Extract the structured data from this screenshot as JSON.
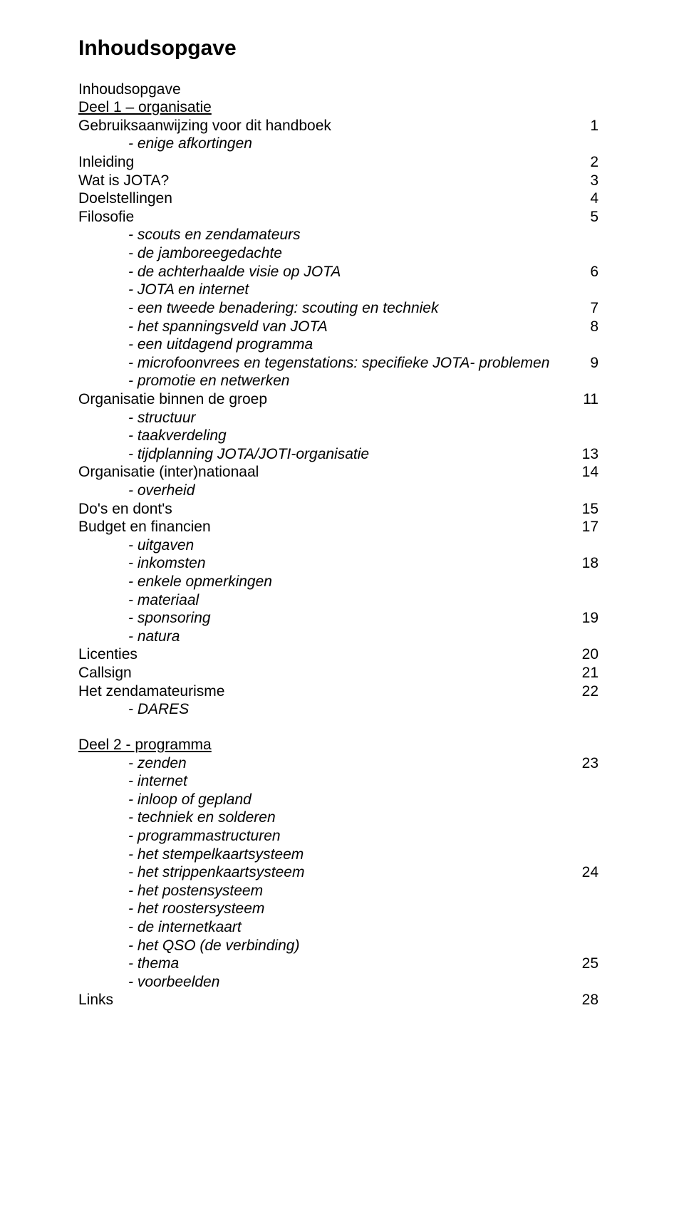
{
  "title": "Inhoudsopgave",
  "entries": [
    {
      "text": "Inhoudsopgave",
      "page": "",
      "indent": 0,
      "underline": false,
      "italic": false
    },
    {
      "text": "Deel 1 – organisatie",
      "page": "",
      "indent": 0,
      "underline": true,
      "italic": false
    },
    {
      "text": "Gebruiksaanwijzing voor dit handboek",
      "page": "1",
      "indent": 0,
      "underline": false,
      "italic": false
    },
    {
      "text": "- enige afkortingen",
      "page": "",
      "indent": 1,
      "underline": false,
      "italic": true
    },
    {
      "text": "Inleiding",
      "page": "2",
      "indent": 0,
      "underline": false,
      "italic": false
    },
    {
      "text": "Wat is JOTA?",
      "page": "3",
      "indent": 0,
      "underline": false,
      "italic": false
    },
    {
      "text": "Doelstellingen",
      "page": "4",
      "indent": 0,
      "underline": false,
      "italic": false
    },
    {
      "text": "Filosofie",
      "page": "5",
      "indent": 0,
      "underline": false,
      "italic": false
    },
    {
      "text": "- scouts en zendamateurs",
      "page": "",
      "indent": 1,
      "underline": false,
      "italic": true
    },
    {
      "text": "- de jamboreegedachte",
      "page": "",
      "indent": 1,
      "underline": false,
      "italic": true
    },
    {
      "text": "- de achterhaalde visie op JOTA",
      "page": "6",
      "indent": 1,
      "underline": false,
      "italic": true
    },
    {
      "text": "- JOTA en internet",
      "page": "",
      "indent": 1,
      "underline": false,
      "italic": true
    },
    {
      "text": "- een tweede benadering: scouting en techniek",
      "page": "7",
      "indent": 1,
      "underline": false,
      "italic": true
    },
    {
      "text": "- het spanningsveld van JOTA",
      "page": "8",
      "indent": 1,
      "underline": false,
      "italic": true
    },
    {
      "text": "- een uitdagend programma",
      "page": "",
      "indent": 1,
      "underline": false,
      "italic": true
    },
    {
      "text": "- microfoonvrees en tegenstations: specifieke JOTA- problemen",
      "page": "9",
      "indent": 1,
      "underline": false,
      "italic": true
    },
    {
      "text": "- promotie en netwerken",
      "page": "",
      "indent": 1,
      "underline": false,
      "italic": true
    },
    {
      "text": "Organisatie binnen de groep",
      "page": "11",
      "indent": 0,
      "underline": false,
      "italic": false
    },
    {
      "text": "- structuur",
      "page": "",
      "indent": 1,
      "underline": false,
      "italic": true
    },
    {
      "text": "- taakverdeling",
      "page": "",
      "indent": 1,
      "underline": false,
      "italic": true
    },
    {
      "text": "- tijdplanning JOTA/JOTI-organisatie",
      "page": "13",
      "indent": 1,
      "underline": false,
      "italic": true
    },
    {
      "text": "Organisatie (inter)nationaal",
      "page": "14",
      "indent": 0,
      "underline": false,
      "italic": false
    },
    {
      "text": "- overheid",
      "page": "",
      "indent": 1,
      "underline": false,
      "italic": true
    },
    {
      "text": "Do's en dont's",
      "page": "15",
      "indent": 0,
      "underline": false,
      "italic": false
    },
    {
      "text": "Budget en financien",
      "page": "17",
      "indent": 0,
      "underline": false,
      "italic": false
    },
    {
      "text": "- uitgaven",
      "page": "",
      "indent": 1,
      "underline": false,
      "italic": true
    },
    {
      "text": "- inkomsten",
      "page": "18",
      "indent": 1,
      "underline": false,
      "italic": true
    },
    {
      "text": "- enkele opmerkingen",
      "page": "",
      "indent": 1,
      "underline": false,
      "italic": true
    },
    {
      "text": "- materiaal",
      "page": "",
      "indent": 1,
      "underline": false,
      "italic": true
    },
    {
      "text": "- sponsoring",
      "page": "19",
      "indent": 1,
      "underline": false,
      "italic": true
    },
    {
      "text": "- natura",
      "page": "",
      "indent": 1,
      "underline": false,
      "italic": true
    },
    {
      "text": "Licenties",
      "page": "20",
      "indent": 0,
      "underline": false,
      "italic": false
    },
    {
      "text": "Callsign",
      "page": "21",
      "indent": 0,
      "underline": false,
      "italic": false
    },
    {
      "text": "Het zendamateurisme",
      "page": "22",
      "indent": 0,
      "underline": false,
      "italic": false
    },
    {
      "text": "- DARES",
      "page": "",
      "indent": 1,
      "underline": false,
      "italic": true
    },
    {
      "text": "__SPACER__",
      "page": "",
      "indent": 0,
      "underline": false,
      "italic": false
    },
    {
      "text": "Deel 2 - programma",
      "page": "",
      "indent": 0,
      "underline": true,
      "italic": false
    },
    {
      "text": "- zenden",
      "page": "23",
      "indent": 1,
      "underline": false,
      "italic": true
    },
    {
      "text": "- internet",
      "page": "",
      "indent": 1,
      "underline": false,
      "italic": true
    },
    {
      "text": "- inloop of gepland",
      "page": "",
      "indent": 1,
      "underline": false,
      "italic": true
    },
    {
      "text": "- techniek en solderen",
      "page": "",
      "indent": 1,
      "underline": false,
      "italic": true
    },
    {
      "text": "- programmastructuren",
      "page": "",
      "indent": 1,
      "underline": false,
      "italic": true
    },
    {
      "text": "- het stempelkaartsysteem",
      "page": "",
      "indent": 1,
      "underline": false,
      "italic": true
    },
    {
      "text": "- het strippenkaartsysteem",
      "page": "24",
      "indent": 1,
      "underline": false,
      "italic": true
    },
    {
      "text": "- het postensysteem",
      "page": "",
      "indent": 1,
      "underline": false,
      "italic": true
    },
    {
      "text": "- het roostersysteem",
      "page": "",
      "indent": 1,
      "underline": false,
      "italic": true
    },
    {
      "text": "- de internetkaart",
      "page": "",
      "indent": 1,
      "underline": false,
      "italic": true
    },
    {
      "text": "- het QSO (de verbinding)",
      "page": "",
      "indent": 1,
      "underline": false,
      "italic": true
    },
    {
      "text": "- thema",
      "page": "25",
      "indent": 1,
      "underline": false,
      "italic": true
    },
    {
      "text": "- voorbeelden",
      "page": "",
      "indent": 1,
      "underline": false,
      "italic": true
    },
    {
      "text": "Links",
      "page": "28",
      "indent": 0,
      "underline": false,
      "italic": false
    }
  ]
}
